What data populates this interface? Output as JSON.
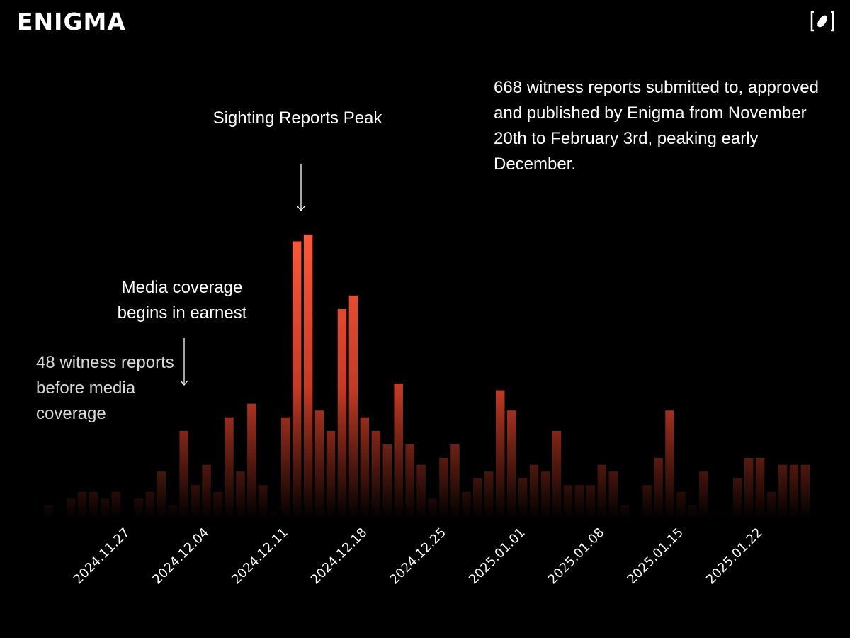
{
  "brand": {
    "name": "ENIGMA"
  },
  "summary": {
    "text": "668 witness reports submitted to, approved and published by Enigma from November 20th to February 3rd, peaking early December."
  },
  "annotations": {
    "peak": "Sighting Reports Peak",
    "media": "Media coverage begins in earnest",
    "before": "48 witness reports before media coverage"
  },
  "colors": {
    "background": "#000000",
    "bar_top": "#ff5a3c",
    "bar_mid": "#c43a24",
    "bar_bottom": "#000000"
  },
  "chart_data": {
    "type": "bar",
    "title": "",
    "xlabel": "",
    "ylabel": "",
    "ylim": [
      0,
      22
    ],
    "start_date": "2024.11.20",
    "x_tick_labels": [
      "2024.11.27",
      "2024.12.04",
      "2024.12.11",
      "2024.12.18",
      "2024.12.25",
      "2025.01.01",
      "2025.01.08",
      "2025.01.15",
      "2025.01.22"
    ],
    "values": [
      1,
      0,
      1.5,
      2,
      2,
      1.5,
      2,
      0,
      1.5,
      2,
      3.5,
      1,
      6.5,
      2.5,
      4,
      2,
      7.5,
      3.5,
      8.5,
      2.5,
      0.5,
      7.5,
      20.5,
      21,
      8,
      6.5,
      15.5,
      16.5,
      7.5,
      6.5,
      5.5,
      10,
      5.5,
      4,
      1.5,
      4.5,
      5.5,
      2,
      3,
      3.5,
      9.5,
      8,
      3,
      4,
      3.5,
      6.5,
      2.5,
      2.5,
      2.5,
      4,
      3.5,
      1,
      0,
      2.5,
      4.5,
      8,
      2,
      1,
      3.5,
      0.5,
      0.5,
      3,
      4.5,
      4.5,
      2,
      4,
      4,
      4
    ]
  }
}
